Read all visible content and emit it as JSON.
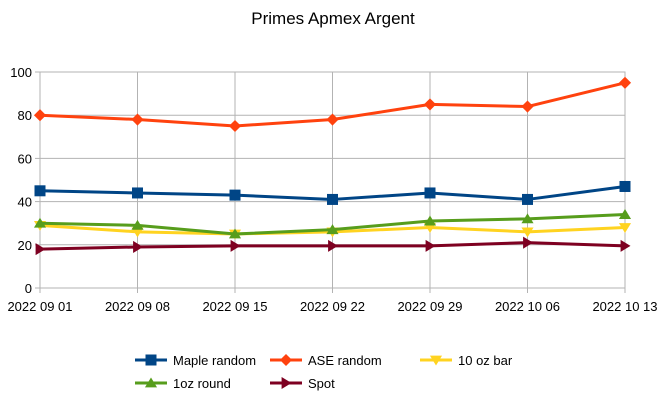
{
  "chart_data": {
    "type": "line",
    "title": "Primes Apmex Argent",
    "xlabel": "",
    "ylabel": "",
    "categories": [
      "2022 09 01",
      "2022 09 08",
      "2022 09 15",
      "2022 09 22",
      "2022 09 29",
      "2022 10 06",
      "2022 10 13"
    ],
    "ylim": [
      0,
      100
    ],
    "yticks": [
      0,
      20,
      40,
      60,
      80,
      100
    ],
    "grid": true,
    "legend": "bottom",
    "series": [
      {
        "name": "Maple random",
        "color": "#004586",
        "marker": "square",
        "values": [
          45,
          44,
          43,
          41,
          44,
          41,
          47
        ]
      },
      {
        "name": "ASE random",
        "color": "#ff420e",
        "marker": "diamond",
        "values": [
          80,
          78,
          75,
          78,
          85,
          84,
          95
        ]
      },
      {
        "name": "10 oz bar",
        "color": "#ffd320",
        "marker": "triangle-down",
        "values": [
          29,
          26,
          25,
          26,
          28,
          26,
          28
        ]
      },
      {
        "name": "1oz round",
        "color": "#579d1c",
        "marker": "triangle-up",
        "values": [
          30,
          29,
          25,
          27,
          31,
          32,
          34
        ]
      },
      {
        "name": "Spot",
        "color": "#7e0021",
        "marker": "triangle-right",
        "values": [
          18,
          19,
          19.5,
          19.5,
          19.5,
          21,
          19.5
        ]
      }
    ]
  }
}
